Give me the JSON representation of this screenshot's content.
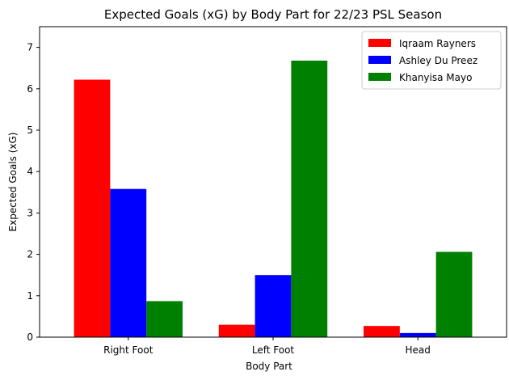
{
  "chart_data": {
    "type": "bar",
    "title": "Expected Goals (xG) by Body Part for 22/23 PSL Season",
    "xlabel": "Body Part",
    "ylabel": "Expected Goals (xG)",
    "categories": [
      "Right Foot",
      "Left Foot",
      "Head"
    ],
    "ylim": [
      0,
      7.5
    ],
    "yticks": [
      "0",
      "1",
      "2",
      "3",
      "4",
      "5",
      "6",
      "7"
    ],
    "grid": false,
    "legend_position": "top-right",
    "series": [
      {
        "name": "Iqraam Rayners",
        "color": "#ff0000",
        "values": [
          6.22,
          0.3,
          0.27
        ]
      },
      {
        "name": "Ashley Du Preez",
        "color": "#0000ff",
        "values": [
          3.58,
          1.5,
          0.1
        ]
      },
      {
        "name": "Khanyisa Mayo",
        "color": "#008000",
        "values": [
          0.87,
          6.68,
          2.06
        ]
      }
    ]
  }
}
